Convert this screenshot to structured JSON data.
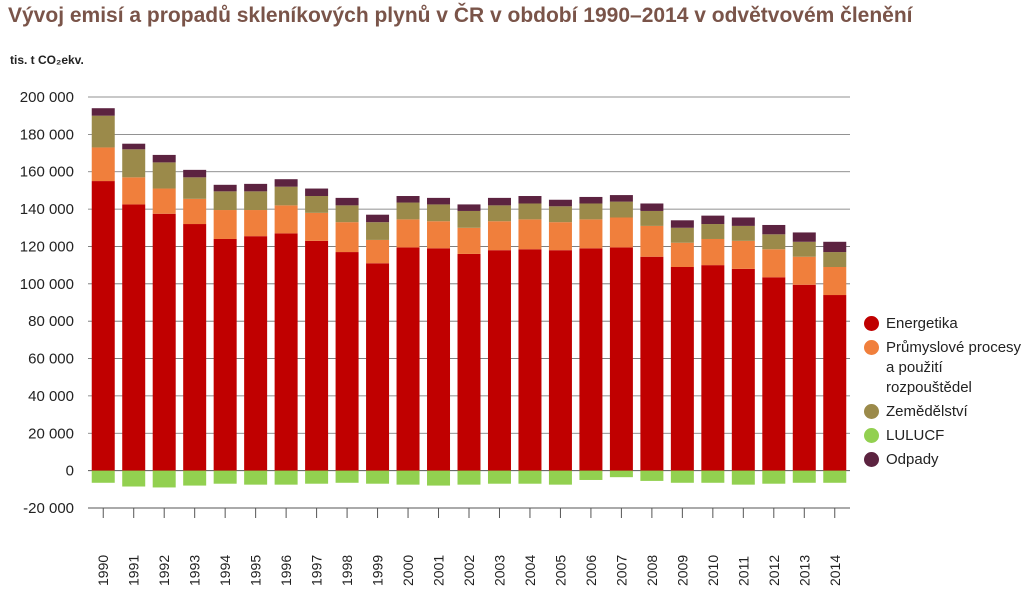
{
  "title": "Vývoj emisí a propadů skleníkových plynů v ČR v období 1990–2014 v odvětvovém členění",
  "unit_label": "tis. t CO₂ekv.",
  "chart_data": {
    "type": "bar",
    "stacked": true,
    "title": "Vývoj emisí a propadů skleníkových plynů v ČR v období 1990–2014 v odvětvovém členění",
    "xlabel": "",
    "ylabel": "tis. t CO₂ekv.",
    "ylim": [
      -20000,
      200000
    ],
    "yticks": [
      -20000,
      0,
      20000,
      40000,
      60000,
      80000,
      100000,
      120000,
      140000,
      160000,
      180000,
      200000
    ],
    "ytick_labels": [
      "-20 000",
      "0",
      "20 000",
      "40 000",
      "60 000",
      "80 000",
      "100 000",
      "120 000",
      "140 000",
      "160 000",
      "180 000",
      "200 000"
    ],
    "grid": true,
    "legend_position": "right",
    "categories": [
      "1990",
      "1991",
      "1992",
      "1993",
      "1994",
      "1995",
      "1996",
      "1997",
      "1998",
      "1999",
      "2000",
      "2001",
      "2002",
      "2003",
      "2004",
      "2005",
      "2006",
      "2007",
      "2008",
      "2009",
      "2010",
      "2011",
      "2012",
      "2013",
      "2014"
    ],
    "series": [
      {
        "name": "Energetika",
        "color": "#c00000",
        "values": [
          155000,
          142500,
          137500,
          132000,
          124000,
          125500,
          127000,
          123000,
          117000,
          111000,
          119500,
          119000,
          116000,
          118000,
          118500,
          118000,
          119000,
          119500,
          114500,
          109000,
          110000,
          108000,
          103500,
          99500,
          94000
        ]
      },
      {
        "name": "Průmyslové procesy a použití rozpouštědel",
        "color": "#f07f3c",
        "values": [
          18000,
          14500,
          13500,
          13500,
          15500,
          14000,
          15000,
          15000,
          16000,
          12500,
          15000,
          14500,
          14000,
          15500,
          16000,
          15000,
          15500,
          16000,
          16500,
          13000,
          14000,
          15000,
          15000,
          15000,
          15000
        ]
      },
      {
        "name": "Zemědělství",
        "color": "#9b8a4a",
        "values": [
          17000,
          15000,
          14000,
          11500,
          10000,
          10000,
          10000,
          9000,
          9000,
          9500,
          9000,
          9000,
          9000,
          8500,
          8500,
          8500,
          8500,
          8500,
          8000,
          8000,
          8000,
          8000,
          8000,
          8000,
          8000
        ]
      },
      {
        "name": "LULUCF",
        "color": "#92d050",
        "values": [
          -6500,
          -8500,
          -9000,
          -8000,
          -7000,
          -7500,
          -7500,
          -7000,
          -6500,
          -7000,
          -7500,
          -8000,
          -7500,
          -7000,
          -7000,
          -7500,
          -5000,
          -3500,
          -5500,
          -6500,
          -6500,
          -7500,
          -7000,
          -6500,
          -6500
        ]
      },
      {
        "name": "Odpady",
        "color": "#5c2340",
        "values": [
          4000,
          3000,
          4000,
          4000,
          3500,
          4000,
          4000,
          4000,
          4000,
          4000,
          3500,
          3500,
          3500,
          4000,
          4000,
          3500,
          3500,
          3500,
          4000,
          4000,
          4500,
          4500,
          5000,
          5000,
          5500
        ]
      }
    ]
  },
  "legend": [
    {
      "label": "Energetika",
      "color": "#c00000"
    },
    {
      "label": "Průmyslové procesy a použití rozpouštědel",
      "color": "#f07f3c"
    },
    {
      "label": "Zemědělství",
      "color": "#9b8a4a"
    },
    {
      "label": "LULUCF",
      "color": "#92d050"
    },
    {
      "label": "Odpady",
      "color": "#5c2340"
    }
  ]
}
